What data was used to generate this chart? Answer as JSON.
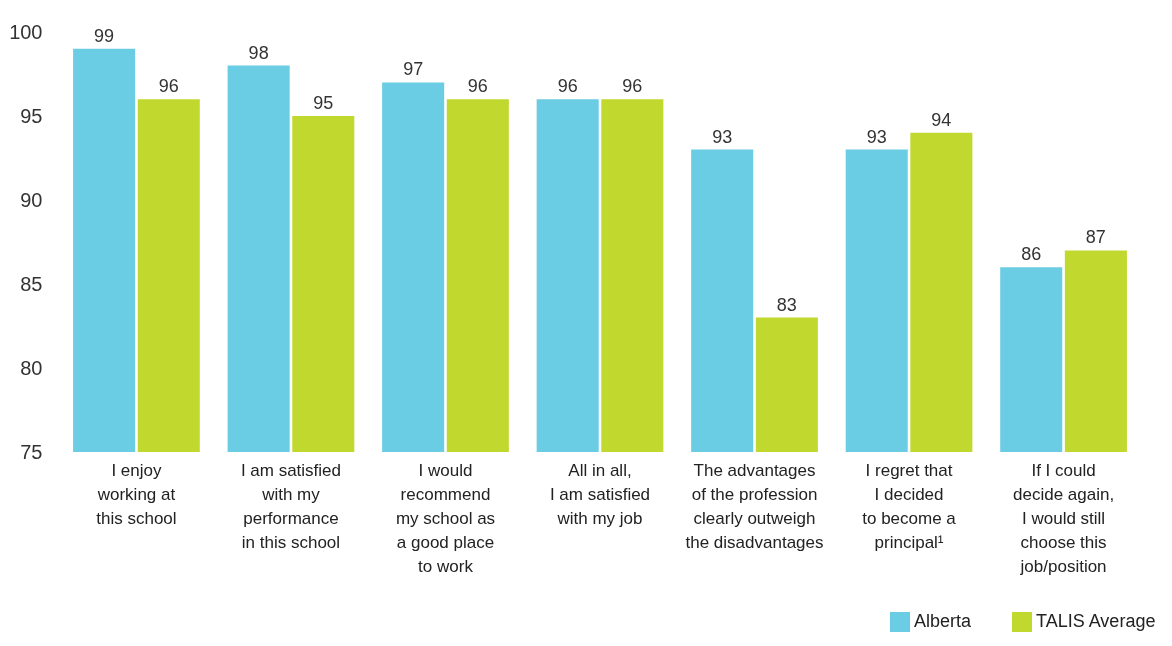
{
  "chart_data": {
    "type": "bar",
    "categories": [
      "I enjoy\nworking at\nthis school",
      "I am satisfied\nwith my\nperformance\nin this school",
      "I would\nrecommend\nmy school as\na good place\nto work",
      "All in all,\nI am satisfied\nwith my job",
      "The advantages\nof the profession\nclearly outweigh\nthe disadvantages",
      "I regret that\nI decided\nto become a\nprincipal¹",
      "If I could\ndecide again,\nI would still\nchoose this\njob/position"
    ],
    "series": [
      {
        "name": "Alberta",
        "color": "#6bcde3",
        "values": [
          99,
          98,
          97,
          96,
          93,
          93,
          86
        ]
      },
      {
        "name": "TALIS Average",
        "color": "#c1d82f",
        "values": [
          96,
          95,
          96,
          96,
          83,
          94,
          87
        ]
      }
    ],
    "ylim": [
      75,
      100
    ],
    "yticks": [
      75,
      80,
      85,
      90,
      95,
      100
    ],
    "grid": false,
    "legend": "bottom right",
    "data_labels": true
  }
}
